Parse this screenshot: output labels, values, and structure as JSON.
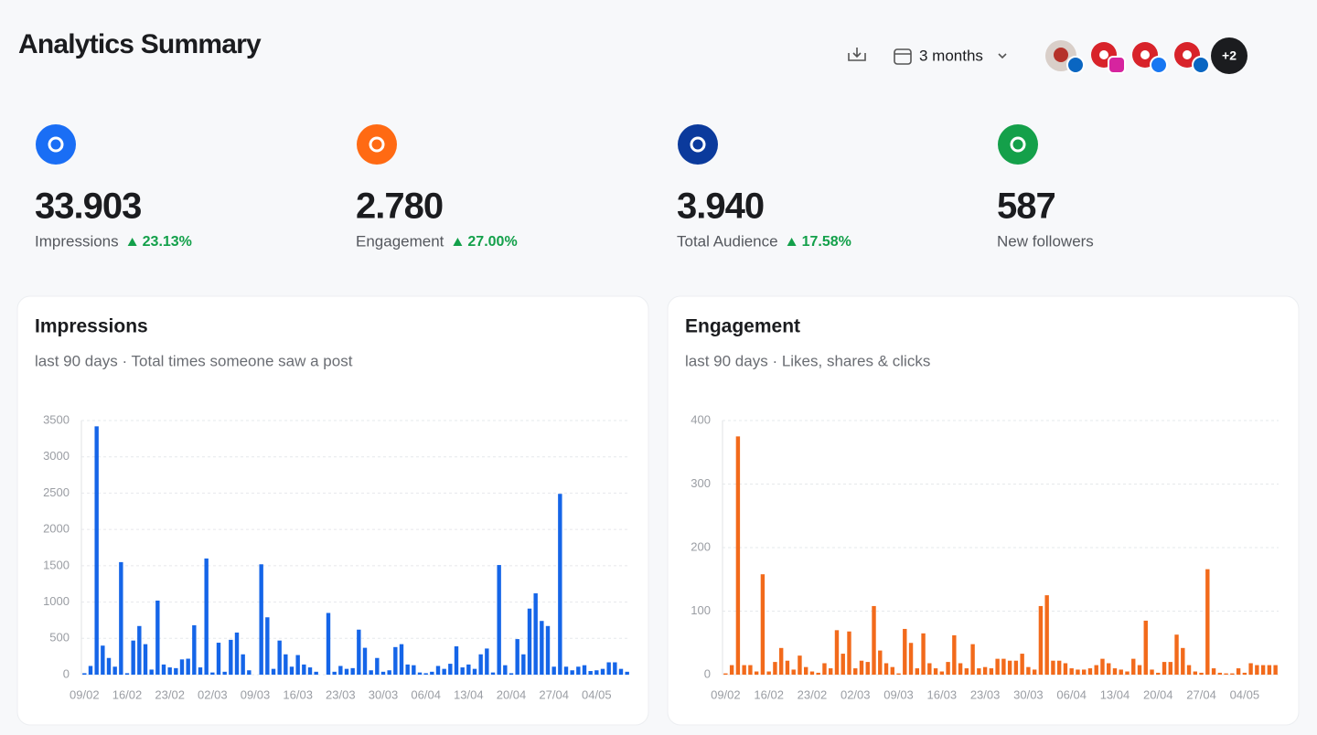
{
  "header": {
    "title": "Analytics Summary",
    "range": "3 months",
    "more_accounts": "+2"
  },
  "stats": [
    {
      "value": "33.903",
      "label": "Impressions",
      "change": "23.13%"
    },
    {
      "value": "2.780",
      "label": "Engagement",
      "change": "27.00%"
    },
    {
      "value": "3.940",
      "label": "Total Audience",
      "change": "17.58%"
    },
    {
      "value": "587",
      "label": "New followers"
    }
  ],
  "chart_data": [
    {
      "type": "bar",
      "title": "Impressions",
      "subtitle": "last 90 days · Total times someone saw a post",
      "color": "#1565e8",
      "categories": [
        "09/02",
        null,
        null,
        null,
        null,
        null,
        null,
        "16/02",
        null,
        null,
        null,
        null,
        null,
        null,
        "23/02",
        null,
        null,
        null,
        null,
        null,
        null,
        "02/03",
        null,
        null,
        null,
        null,
        null,
        null,
        "09/03",
        null,
        null,
        null,
        null,
        null,
        null,
        "16/03",
        null,
        null,
        null,
        null,
        null,
        null,
        "23/03",
        null,
        null,
        null,
        null,
        null,
        null,
        "30/03",
        null,
        null,
        null,
        null,
        null,
        null,
        "06/04",
        null,
        null,
        null,
        null,
        null,
        null,
        "13/04",
        null,
        null,
        null,
        null,
        null,
        null,
        "20/04",
        null,
        null,
        null,
        null,
        null,
        null,
        "27/04",
        null,
        null,
        null,
        null,
        null,
        null,
        "04/05",
        null,
        null,
        null,
        null,
        null
      ],
      "values": [
        20,
        120,
        3420,
        400,
        230,
        110,
        1550,
        20,
        470,
        670,
        420,
        70,
        1020,
        140,
        100,
        90,
        210,
        220,
        680,
        100,
        1600,
        30,
        440,
        40,
        480,
        580,
        280,
        60,
        0,
        1520,
        790,
        80,
        470,
        280,
        110,
        270,
        140,
        100,
        40,
        0,
        850,
        40,
        120,
        80,
        90,
        620,
        370,
        60,
        230,
        40,
        60,
        380,
        420,
        140,
        130,
        30,
        20,
        40,
        120,
        80,
        150,
        390,
        100,
        140,
        80,
        280,
        360,
        30,
        1510,
        130,
        20,
        490,
        280,
        910,
        1120,
        740,
        670,
        110,
        2490,
        110,
        60,
        110,
        130,
        50,
        60,
        80,
        170,
        170,
        80,
        40
      ],
      "ylim": [
        0,
        3500
      ],
      "yticks": [
        0,
        500,
        1000,
        1500,
        2000,
        2500,
        3000,
        3500
      ],
      "grid": true
    },
    {
      "type": "bar",
      "title": "Engagement",
      "subtitle": "last 90 days · Likes, shares & clicks",
      "color": "#f26a1b",
      "categories": [
        "09/02",
        null,
        null,
        null,
        null,
        null,
        null,
        "16/02",
        null,
        null,
        null,
        null,
        null,
        null,
        "23/02",
        null,
        null,
        null,
        null,
        null,
        null,
        "02/03",
        null,
        null,
        null,
        null,
        null,
        null,
        "09/03",
        null,
        null,
        null,
        null,
        null,
        null,
        "16/03",
        null,
        null,
        null,
        null,
        null,
        null,
        "23/03",
        null,
        null,
        null,
        null,
        null,
        null,
        "30/03",
        null,
        null,
        null,
        null,
        null,
        null,
        "06/04",
        null,
        null,
        null,
        null,
        null,
        null,
        "13/04",
        null,
        null,
        null,
        null,
        null,
        null,
        "20/04",
        null,
        null,
        null,
        null,
        null,
        null,
        "27/04",
        null,
        null,
        null,
        null,
        null,
        null,
        "04/05",
        null,
        null,
        null,
        null,
        null
      ],
      "values": [
        2,
        15,
        375,
        15,
        15,
        5,
        158,
        5,
        20,
        42,
        22,
        8,
        30,
        12,
        5,
        3,
        18,
        10,
        70,
        33,
        68,
        10,
        22,
        20,
        108,
        38,
        18,
        12,
        2,
        72,
        50,
        10,
        65,
        18,
        10,
        5,
        20,
        62,
        18,
        10,
        48,
        10,
        12,
        10,
        25,
        25,
        22,
        22,
        33,
        12,
        8,
        108,
        125,
        22,
        22,
        18,
        10,
        8,
        8,
        10,
        15,
        25,
        18,
        10,
        8,
        5,
        25,
        15,
        85,
        8,
        3,
        20,
        20,
        63,
        42,
        15,
        5,
        3,
        166,
        10,
        3,
        2,
        2,
        10,
        3,
        18,
        15,
        15,
        15,
        15
      ],
      "ylim": [
        0,
        400
      ],
      "yticks": [
        0,
        100,
        200,
        300,
        400
      ],
      "grid": true
    }
  ]
}
